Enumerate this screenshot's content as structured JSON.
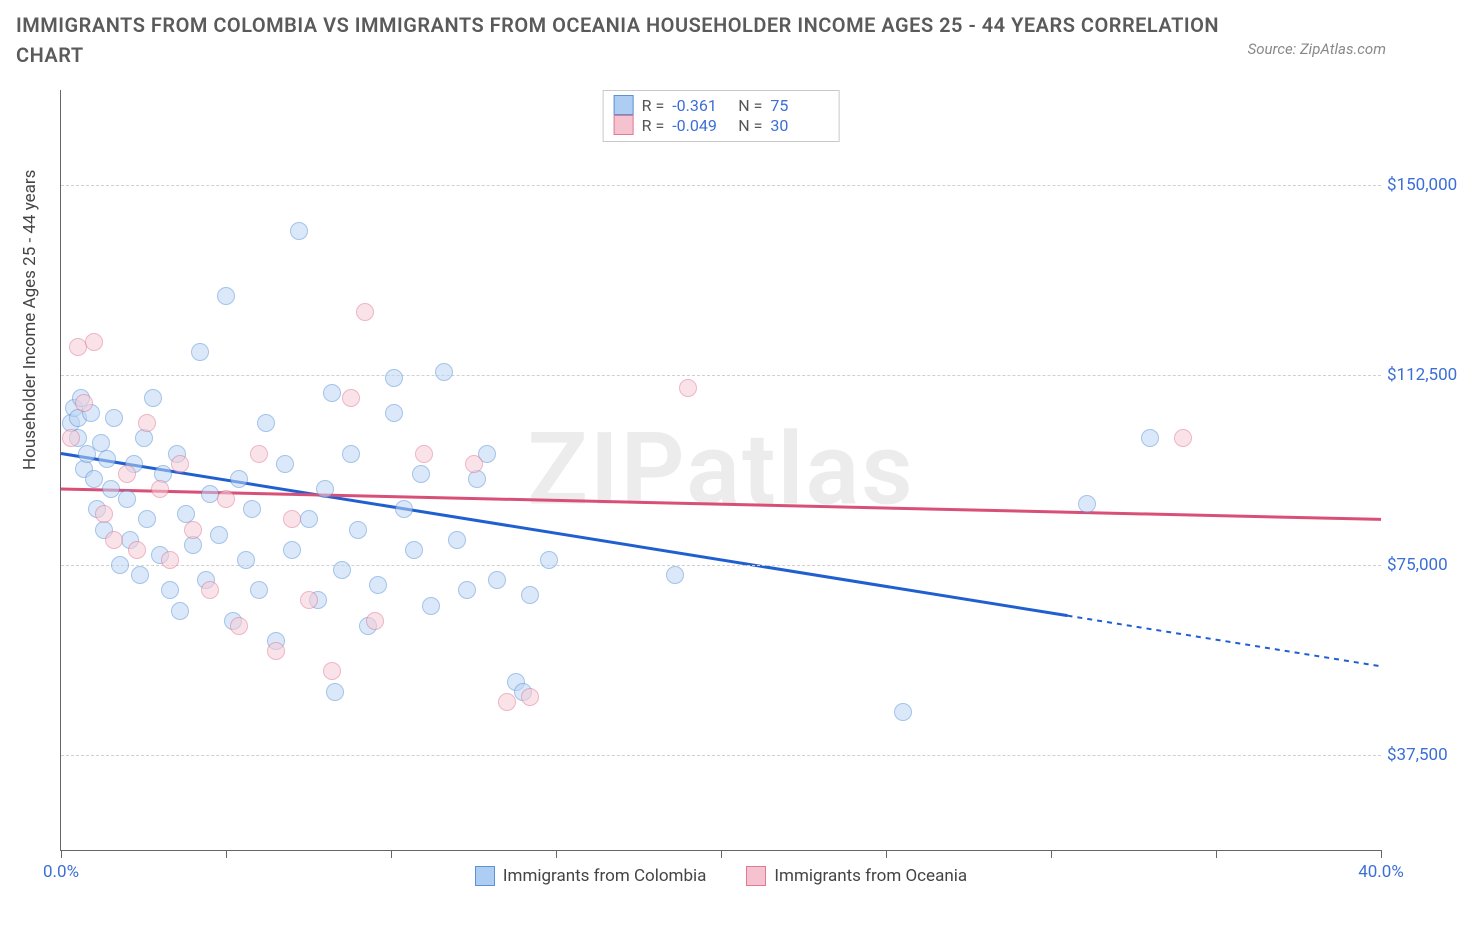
{
  "title": "IMMIGRANTS FROM COLOMBIA VS IMMIGRANTS FROM OCEANIA HOUSEHOLDER INCOME AGES 25 - 44 YEARS CORRELATION CHART",
  "source_label": "Source: ZipAtlas.com",
  "watermark": "ZIPatlas",
  "chart": {
    "type": "scatter",
    "xaxis": {
      "min": 0,
      "max": 40,
      "ticks": [
        0,
        5,
        10,
        15,
        20,
        25,
        30,
        35,
        40
      ],
      "tick_labels": {
        "0": "0.0%",
        "40": "40.0%"
      }
    },
    "yaxis": {
      "min": 18750,
      "max": 168750,
      "ticks": [
        37500,
        75000,
        112500,
        150000
      ],
      "tick_labels": [
        "$37,500",
        "$75,000",
        "$112,500",
        "$150,000"
      ],
      "title": "Householder Income Ages 25 - 44 years"
    },
    "grid_color": "#d8d8d8",
    "background_color": "#ffffff",
    "plot_border_color": "#666666",
    "series": [
      {
        "key": "colombia",
        "label": "Immigrants from Colombia",
        "color_fill": "#bcd6f5",
        "color_stroke": "#5b93d6",
        "swatch_fill": "#aecdf2",
        "swatch_stroke": "#5b93d6",
        "marker_radius": 8,
        "fill_opacity": 0.55,
        "R": "-0.361",
        "N": "75",
        "trend": {
          "x1": 0,
          "y1": 97000,
          "x2": 30.5,
          "y2": 65000,
          "x2_ext": 40,
          "y2_ext": 55000,
          "color": "#1f5fd0",
          "width": 3,
          "dash_ext": "5,5"
        },
        "points": [
          [
            0.3,
            103000
          ],
          [
            0.4,
            106000
          ],
          [
            0.5,
            100000
          ],
          [
            0.5,
            104000
          ],
          [
            0.6,
            108000
          ],
          [
            0.7,
            94000
          ],
          [
            0.8,
            97000
          ],
          [
            0.9,
            105000
          ],
          [
            1.0,
            92000
          ],
          [
            1.1,
            86000
          ],
          [
            1.2,
            99000
          ],
          [
            1.3,
            82000
          ],
          [
            1.4,
            96000
          ],
          [
            1.5,
            90000
          ],
          [
            1.6,
            104000
          ],
          [
            1.8,
            75000
          ],
          [
            2.0,
            88000
          ],
          [
            2.1,
            80000
          ],
          [
            2.2,
            95000
          ],
          [
            2.4,
            73000
          ],
          [
            2.5,
            100000
          ],
          [
            2.6,
            84000
          ],
          [
            2.8,
            108000
          ],
          [
            3.0,
            77000
          ],
          [
            3.1,
            93000
          ],
          [
            3.3,
            70000
          ],
          [
            3.5,
            97000
          ],
          [
            3.6,
            66000
          ],
          [
            3.8,
            85000
          ],
          [
            4.0,
            79000
          ],
          [
            4.2,
            117000
          ],
          [
            4.4,
            72000
          ],
          [
            4.5,
            89000
          ],
          [
            4.8,
            81000
          ],
          [
            5.0,
            128000
          ],
          [
            5.2,
            64000
          ],
          [
            5.4,
            92000
          ],
          [
            5.6,
            76000
          ],
          [
            5.8,
            86000
          ],
          [
            6.0,
            70000
          ],
          [
            6.2,
            103000
          ],
          [
            6.5,
            60000
          ],
          [
            6.8,
            95000
          ],
          [
            7.0,
            78000
          ],
          [
            7.2,
            141000
          ],
          [
            7.5,
            84000
          ],
          [
            7.8,
            68000
          ],
          [
            8.0,
            90000
          ],
          [
            8.2,
            109000
          ],
          [
            8.3,
            50000
          ],
          [
            8.5,
            74000
          ],
          [
            8.8,
            97000
          ],
          [
            9.0,
            82000
          ],
          [
            9.3,
            63000
          ],
          [
            9.6,
            71000
          ],
          [
            10.1,
            112000
          ],
          [
            10.1,
            105000
          ],
          [
            10.4,
            86000
          ],
          [
            10.7,
            78000
          ],
          [
            10.9,
            93000
          ],
          [
            11.2,
            67000
          ],
          [
            11.6,
            113000
          ],
          [
            12.0,
            80000
          ],
          [
            12.3,
            70000
          ],
          [
            12.6,
            92000
          ],
          [
            12.9,
            97000
          ],
          [
            13.2,
            72000
          ],
          [
            13.8,
            52000
          ],
          [
            14.0,
            50000
          ],
          [
            14.2,
            69000
          ],
          [
            14.8,
            76000
          ],
          [
            18.6,
            73000
          ],
          [
            25.5,
            46000
          ],
          [
            31.1,
            87000
          ],
          [
            33.0,
            100000
          ]
        ]
      },
      {
        "key": "oceania",
        "label": "Immigrants from Oceania",
        "color_fill": "#f7cdd7",
        "color_stroke": "#e07a95",
        "swatch_fill": "#f5c3d0",
        "swatch_stroke": "#e07a95",
        "marker_radius": 8,
        "fill_opacity": 0.55,
        "R": "-0.049",
        "N": "30",
        "trend": {
          "x1": 0,
          "y1": 90000,
          "x2": 40,
          "y2": 84000,
          "color": "#d84f78",
          "width": 3
        },
        "points": [
          [
            0.3,
            100000
          ],
          [
            0.5,
            118000
          ],
          [
            0.7,
            107000
          ],
          [
            1.0,
            119000
          ],
          [
            1.3,
            85000
          ],
          [
            1.6,
            80000
          ],
          [
            2.0,
            93000
          ],
          [
            2.3,
            78000
          ],
          [
            2.6,
            103000
          ],
          [
            3.0,
            90000
          ],
          [
            3.3,
            76000
          ],
          [
            3.6,
            95000
          ],
          [
            4.0,
            82000
          ],
          [
            4.5,
            70000
          ],
          [
            5.0,
            88000
          ],
          [
            5.4,
            63000
          ],
          [
            6.0,
            97000
          ],
          [
            6.5,
            58000
          ],
          [
            7.0,
            84000
          ],
          [
            7.5,
            68000
          ],
          [
            8.2,
            54000
          ],
          [
            8.8,
            108000
          ],
          [
            9.2,
            125000
          ],
          [
            9.5,
            64000
          ],
          [
            11.0,
            97000
          ],
          [
            12.5,
            95000
          ],
          [
            13.5,
            48000
          ],
          [
            14.2,
            49000
          ],
          [
            19.0,
            110000
          ],
          [
            34.0,
            100000
          ]
        ]
      }
    ],
    "legend_top": {
      "R_label": "R =",
      "N_label": "N ="
    }
  }
}
